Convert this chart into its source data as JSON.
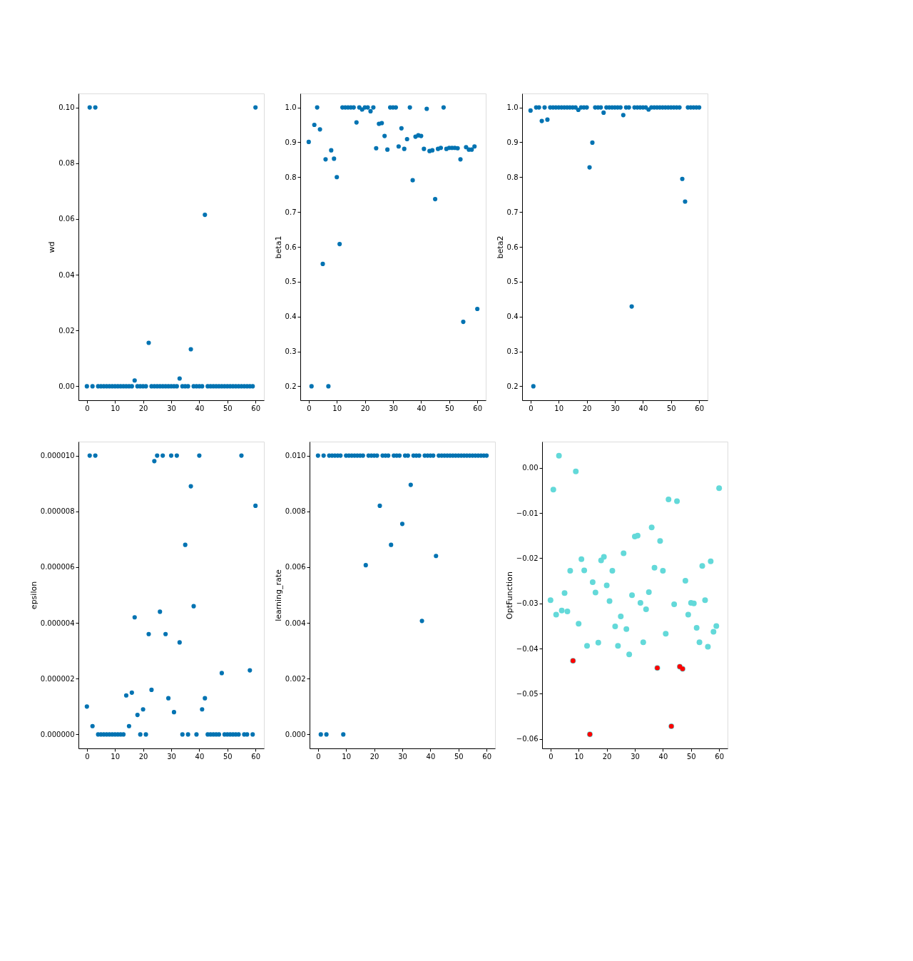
{
  "chart_data": [
    {
      "type": "scatter",
      "ylabel": "wd",
      "marker": "circle",
      "x": [
        0,
        1,
        2,
        3,
        4,
        5,
        6,
        7,
        8,
        9,
        10,
        11,
        12,
        13,
        14,
        15,
        16,
        17,
        18,
        19,
        20,
        21,
        22,
        23,
        24,
        25,
        26,
        27,
        28,
        29,
        30,
        31,
        32,
        33,
        34,
        35,
        36,
        37,
        38,
        39,
        40,
        41,
        42,
        43,
        44,
        45,
        46,
        47,
        48,
        49,
        50,
        51,
        52,
        53,
        54,
        55,
        56,
        57,
        58,
        59,
        60
      ],
      "series": [
        {
          "color": "#0173b2",
          "values": [
            0,
            0.1,
            0,
            0.1,
            0,
            0,
            0,
            0,
            0,
            0,
            0,
            0,
            0,
            0,
            0,
            0,
            0,
            0.0021,
            0,
            0,
            0,
            0,
            0.0156,
            0,
            0,
            0,
            0,
            0,
            0,
            0,
            0,
            0,
            0,
            0.0028,
            0,
            0,
            0,
            0.0133,
            0,
            0,
            0,
            0,
            0.0615,
            0,
            0,
            0,
            0,
            0,
            0,
            0,
            0,
            0,
            0,
            0,
            0,
            0,
            0,
            0,
            0,
            0,
            0.1
          ]
        }
      ],
      "xlim": [
        -3,
        63
      ],
      "xticks": [
        0,
        10,
        20,
        30,
        40,
        50,
        60
      ],
      "ylim": [
        -0.005,
        0.105
      ],
      "yticks": [
        {
          "value": 0,
          "label": "0.00"
        },
        {
          "value": 0.02,
          "label": "0.02"
        },
        {
          "value": 0.04,
          "label": "0.04"
        },
        {
          "value": 0.06,
          "label": "0.06"
        },
        {
          "value": 0.08,
          "label": "0.08"
        },
        {
          "value": 0.1,
          "label": "0.10"
        }
      ]
    },
    {
      "type": "scatter",
      "ylabel": "beta1",
      "marker": "circle",
      "x": [
        0,
        1,
        2,
        3,
        4,
        5,
        6,
        7,
        8,
        9,
        10,
        11,
        12,
        13,
        14,
        15,
        16,
        17,
        18,
        19,
        20,
        21,
        22,
        23,
        24,
        25,
        26,
        27,
        28,
        29,
        30,
        31,
        32,
        33,
        34,
        35,
        36,
        37,
        38,
        39,
        40,
        41,
        42,
        43,
        44,
        45,
        46,
        47,
        48,
        49,
        50,
        51,
        52,
        53,
        54,
        55,
        56,
        57,
        58,
        59,
        60
      ],
      "series": [
        {
          "color": "#0173b2",
          "values": [
            0.901,
            0.2,
            0.95,
            1.0,
            0.937,
            0.551,
            0.851,
            0.2,
            0.877,
            0.853,
            0.8,
            0.608,
            1.0,
            1.0,
            1.0,
            1.0,
            1.0,
            0.957,
            1.0,
            0.994,
            1.0,
            1.0,
            0.989,
            1.0,
            0.883,
            0.953,
            0.955,
            0.918,
            0.879,
            1.0,
            1.0,
            1.0,
            0.888,
            0.94,
            0.881,
            0.909,
            1.0,
            0.791,
            0.916,
            0.92,
            0.918,
            0.881,
            0.996,
            0.875,
            0.877,
            0.737,
            0.881,
            0.884,
            1.0,
            0.881,
            0.884,
            0.884,
            0.884,
            0.883,
            0.851,
            0.385,
            0.886,
            0.879,
            0.879,
            0.888,
            0.422
          ]
        }
      ],
      "xlim": [
        -3,
        63
      ],
      "xticks": [
        0,
        10,
        20,
        30,
        40,
        50,
        60
      ],
      "ylim": [
        0.16,
        1.04
      ],
      "yticks": [
        0.2,
        0.3,
        0.4,
        0.5,
        0.6,
        0.7,
        0.8,
        0.9,
        {
          "value": 1.0,
          "label": "1.0"
        }
      ]
    },
    {
      "type": "scatter",
      "ylabel": "beta2",
      "marker": "circle",
      "x": [
        0,
        1,
        2,
        3,
        4,
        5,
        6,
        7,
        8,
        9,
        10,
        11,
        12,
        13,
        14,
        15,
        16,
        17,
        18,
        19,
        20,
        21,
        22,
        23,
        24,
        25,
        26,
        27,
        28,
        29,
        30,
        31,
        32,
        33,
        34,
        35,
        36,
        37,
        38,
        39,
        40,
        41,
        42,
        43,
        44,
        45,
        46,
        47,
        48,
        49,
        50,
        51,
        52,
        53,
        54,
        55,
        56,
        57,
        58,
        59,
        60
      ],
      "series": [
        {
          "color": "#0173b2",
          "values": [
            0.991,
            0.2,
            1.0,
            1.0,
            0.961,
            1.0,
            0.965,
            1.0,
            1.0,
            1.0,
            1.0,
            1.0,
            1.0,
            1.0,
            1.0,
            1.0,
            1.0,
            0.993,
            1.0,
            1.0,
            1.0,
            0.828,
            0.899,
            1.0,
            1.0,
            1.0,
            0.985,
            1.0,
            1.0,
            1.0,
            1.0,
            1.0,
            1.0,
            0.978,
            1.0,
            1.0,
            0.429,
            1.0,
            1.0,
            1.0,
            1.0,
            1.0,
            0.994,
            1.0,
            1.0,
            1.0,
            1.0,
            1.0,
            1.0,
            1.0,
            1.0,
            1.0,
            1.0,
            1.0,
            0.795,
            0.73,
            1.0,
            1.0,
            1.0,
            1.0,
            1.0
          ]
        }
      ],
      "xlim": [
        -3,
        63
      ],
      "xticks": [
        0,
        10,
        20,
        30,
        40,
        50,
        60
      ],
      "ylim": [
        0.16,
        1.04
      ],
      "yticks": [
        0.2,
        0.3,
        0.4,
        0.5,
        0.6,
        0.7,
        0.8,
        0.9,
        {
          "value": 1.0,
          "label": "1.0"
        }
      ]
    },
    {
      "type": "scatter",
      "ylabel": "epsilon",
      "marker": "circle",
      "x": [
        0,
        1,
        2,
        3,
        4,
        5,
        6,
        7,
        8,
        9,
        10,
        11,
        12,
        13,
        14,
        15,
        16,
        17,
        18,
        19,
        20,
        21,
        22,
        23,
        24,
        25,
        26,
        27,
        28,
        29,
        30,
        31,
        32,
        33,
        34,
        35,
        36,
        37,
        38,
        39,
        40,
        41,
        42,
        43,
        44,
        45,
        46,
        47,
        48,
        49,
        50,
        51,
        52,
        53,
        54,
        55,
        56,
        57,
        58,
        59,
        60
      ],
      "series": [
        {
          "color": "#0173b2",
          "values": [
            1e-06,
            1e-05,
            3e-07,
            1e-05,
            0,
            0,
            0,
            0,
            0,
            0,
            0,
            0,
            0,
            0,
            1.4e-06,
            3e-07,
            1.5e-06,
            4.2e-06,
            7e-07,
            0,
            9e-07,
            0,
            3.6e-06,
            1.6e-06,
            9.8e-06,
            1e-05,
            4.4e-06,
            1e-05,
            3.6e-06,
            1.3e-06,
            1e-05,
            8e-07,
            1e-05,
            3.3e-06,
            0,
            6.8e-06,
            0,
            8.9e-06,
            4.6e-06,
            0,
            1e-05,
            9e-07,
            1.3e-06,
            0,
            0,
            0,
            0,
            0,
            2.2e-06,
            0,
            0,
            0,
            0,
            0,
            0,
            1e-05,
            0,
            0,
            2.3e-06,
            0,
            8.2e-06
          ]
        }
      ],
      "xlim": [
        -3,
        63
      ],
      "xticks": [
        0,
        10,
        20,
        30,
        40,
        50,
        60
      ],
      "ylim": [
        -5e-07,
        1.05e-05
      ],
      "yticks": [
        {
          "value": 0,
          "label": "0.000000"
        },
        {
          "value": 2e-06,
          "label": "0.000002"
        },
        {
          "value": 4e-06,
          "label": "0.000004"
        },
        {
          "value": 6e-06,
          "label": "0.000006"
        },
        {
          "value": 8e-06,
          "label": "0.000008"
        },
        {
          "value": 1e-05,
          "label": "0.000010"
        }
      ]
    },
    {
      "type": "scatter",
      "ylabel": "learning_rate",
      "marker": "circle",
      "x": [
        0,
        1,
        2,
        3,
        4,
        5,
        6,
        7,
        8,
        9,
        10,
        11,
        12,
        13,
        14,
        15,
        16,
        17,
        18,
        19,
        20,
        21,
        22,
        23,
        24,
        25,
        26,
        27,
        28,
        29,
        30,
        31,
        32,
        33,
        34,
        35,
        36,
        37,
        38,
        39,
        40,
        41,
        42,
        43,
        44,
        45,
        46,
        47,
        48,
        49,
        50,
        51,
        52,
        53,
        54,
        55,
        56,
        57,
        58,
        59,
        60
      ],
      "series": [
        {
          "color": "#0173b2",
          "values": [
            0.01,
            0,
            0.01,
            0,
            0.01,
            0.01,
            0.01,
            0.01,
            0.01,
            0,
            0.01,
            0.01,
            0.01,
            0.01,
            0.01,
            0.01,
            0.01,
            0.00607,
            0.01,
            0.01,
            0.01,
            0.01,
            0.0082,
            0.01,
            0.01,
            0.01,
            0.0068,
            0.01,
            0.01,
            0.01,
            0.00755,
            0.01,
            0.01,
            0.00895,
            0.01,
            0.01,
            0.01,
            0.00407,
            0.01,
            0.01,
            0.01,
            0.01,
            0.0064,
            0.01,
            0.01,
            0.01,
            0.01,
            0.01,
            0.01,
            0.01,
            0.01,
            0.01,
            0.01,
            0.01,
            0.01,
            0.01,
            0.01,
            0.01,
            0.01,
            0.01,
            0.01
          ]
        }
      ],
      "xlim": [
        -3,
        63
      ],
      "xticks": [
        0,
        10,
        20,
        30,
        40,
        50,
        60
      ],
      "ylim": [
        -0.0005,
        0.0105
      ],
      "yticks": [
        {
          "value": 0,
          "label": "0.000"
        },
        {
          "value": 0.002,
          "label": "0.002"
        },
        {
          "value": 0.004,
          "label": "0.004"
        },
        {
          "value": 0.006,
          "label": "0.006"
        },
        {
          "value": 0.008,
          "label": "0.008"
        },
        {
          "value": 0.01,
          "label": "0.010"
        }
      ]
    },
    {
      "type": "scatter",
      "ylabel": "OptFunction",
      "marker": "circle",
      "x": [
        0,
        1,
        2,
        3,
        4,
        5,
        6,
        7,
        8,
        9,
        10,
        11,
        12,
        13,
        14,
        15,
        16,
        17,
        18,
        19,
        20,
        21,
        22,
        23,
        24,
        25,
        26,
        27,
        28,
        29,
        30,
        31,
        32,
        33,
        34,
        35,
        36,
        37,
        38,
        39,
        40,
        41,
        42,
        43,
        44,
        45,
        46,
        47,
        48,
        49,
        50,
        51,
        52,
        53,
        54,
        55,
        56,
        57,
        58,
        59,
        60
      ],
      "series": [
        {
          "color": "#63d9d9",
          "values": [
            -0.0293,
            -0.0048,
            -0.0325,
            0.0027,
            -0.0316,
            -0.0277,
            -0.0318,
            -0.0228,
            -0.0427,
            -0.0008,
            -0.0345,
            -0.0202,
            -0.0227,
            -0.0394,
            -0.059,
            -0.0253,
            -0.0276,
            -0.0387,
            -0.0205,
            -0.0197,
            -0.026,
            -0.0295,
            -0.0228,
            -0.0351,
            -0.0394,
            -0.0329,
            -0.0189,
            -0.0357,
            -0.0413,
            -0.0282,
            -0.0152,
            -0.015,
            -0.0299,
            -0.0386,
            -0.0313,
            -0.0275,
            -0.0132,
            -0.0221,
            -0.0443,
            -0.0162,
            -0.0228,
            -0.0367,
            -0.007,
            -0.0572,
            -0.0302,
            -0.0074,
            -0.044,
            -0.0445,
            -0.025,
            -0.0325,
            -0.0299,
            -0.03,
            -0.0354,
            -0.0386,
            -0.0217,
            -0.0293,
            -0.0396,
            -0.0207,
            -0.0363,
            -0.035,
            -0.0045
          ]
        },
        {
          "color": "#ff0000",
          "x": [
            8,
            14,
            38,
            43,
            46,
            47
          ],
          "values": [
            -0.0427,
            -0.059,
            -0.0443,
            -0.0572,
            -0.044,
            -0.0445
          ]
        }
      ],
      "xlim": [
        -3,
        63
      ],
      "xticks": [
        0,
        10,
        20,
        30,
        40,
        50,
        60
      ],
      "ylim": [
        -0.0621,
        0.0058
      ],
      "yticks": [
        {
          "value": -0.06,
          "label": "−0.06"
        },
        {
          "value": -0.05,
          "label": "−0.05"
        },
        {
          "value": -0.04,
          "label": "−0.04"
        },
        {
          "value": -0.03,
          "label": "−0.03"
        },
        {
          "value": -0.02,
          "label": "−0.02"
        },
        {
          "value": -0.01,
          "label": "−0.01"
        },
        {
          "value": 0,
          "label": "0.00"
        }
      ]
    }
  ]
}
